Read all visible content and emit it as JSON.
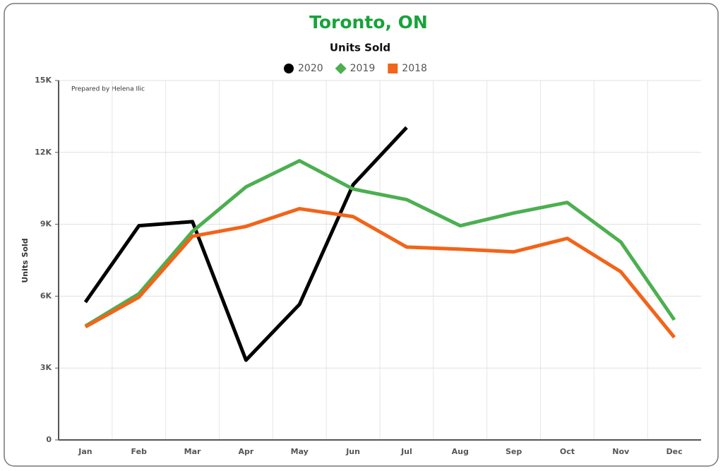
{
  "chart_data": {
    "type": "line",
    "title": "Toronto, ON",
    "subtitle": "Units Sold",
    "y_label": "Units Sold",
    "annotation": "Prepared by Helena Ilic",
    "categories": [
      "Jan",
      "Feb",
      "Mar",
      "Apr",
      "May",
      "Jun",
      "Jul",
      "Aug",
      "Sep",
      "Oct",
      "Nov",
      "Dec"
    ],
    "series": [
      {
        "name": "2020",
        "color": "#000000",
        "marker": "circle",
        "values": [
          5750,
          8940,
          9110,
          3330,
          5660,
          10650,
          13040,
          null,
          null,
          null,
          null,
          null
        ]
      },
      {
        "name": "2019",
        "color": "#4caf50",
        "marker": "diamond",
        "values": [
          4750,
          6100,
          8700,
          10560,
          11650,
          10470,
          10030,
          8940,
          9470,
          9910,
          8260,
          5010
        ]
      },
      {
        "name": "2018",
        "color": "#f26419",
        "marker": "square",
        "values": [
          4720,
          5960,
          8500,
          8910,
          9650,
          9320,
          8050,
          7960,
          7850,
          8410,
          7020,
          4280
        ]
      }
    ],
    "ylim": [
      0,
      15000
    ],
    "yticks": [
      0,
      {
        "value": 3000,
        "label": "3K"
      },
      {
        "value": 6000,
        "label": "6K"
      },
      {
        "value": 9000,
        "label": "9K"
      },
      {
        "value": 12000,
        "label": "12K"
      },
      {
        "value": 15000,
        "label": "15K"
      }
    ],
    "grid": true
  }
}
